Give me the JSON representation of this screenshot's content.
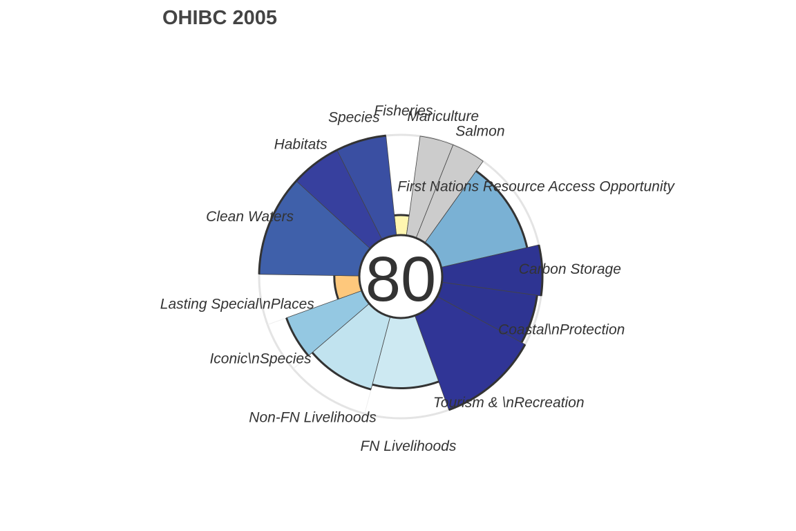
{
  "chart_data": {
    "type": "polar-bar",
    "title": "OHIBC 2005",
    "center_score": "80",
    "rmax": 100,
    "grid": true,
    "segments": [
      {
        "label": "Fisheries",
        "value": 20,
        "weight": 0.5,
        "color": "#fff6b0",
        "na": false
      },
      {
        "label": "Mariculture",
        "value": 100,
        "weight": 0.5,
        "color": "#cccccc",
        "na": true
      },
      {
        "label": "Salmon",
        "value": 100,
        "weight": 0.5,
        "color": "#cccccc",
        "na": true
      },
      {
        "label": "First Nations Resource Access Opportunity",
        "value": 88,
        "weight": 1.5,
        "color": "#7ab1d4",
        "na": false
      },
      {
        "label": "Carbon Storage",
        "value": 100,
        "weight": 0.75,
        "color": "#2e3492",
        "na": false
      },
      {
        "label": "Coastal\\nProtection",
        "value": 96,
        "weight": 0.75,
        "color": "#2e3492",
        "na": false
      },
      {
        "label": "Tourism & \\nRecreation",
        "value": 100,
        "weight": 1.5,
        "color": "#303596",
        "na": false
      },
      {
        "label": "FN Livelihoods",
        "value": 70,
        "weight": 1.25,
        "color": "#cde9f2",
        "na": false
      },
      {
        "label": "Non-FN Livelihoods",
        "value": 75,
        "weight": 1.25,
        "color": "#c1e3ef",
        "na": false
      },
      {
        "label": "Iconic\\nSpecies",
        "value": 80,
        "weight": 0.75,
        "color": "#94c8e2",
        "na": false
      },
      {
        "label": "Lasting Special\\nPlaces",
        "value": 25,
        "weight": 0.75,
        "color": "#fec87c",
        "na": false
      },
      {
        "label": "Clean Waters",
        "value": 100,
        "weight": 1.5,
        "color": "#3f60aa",
        "na": false
      },
      {
        "label": "Habitats",
        "value": 100,
        "weight": 0.75,
        "color": "#37409e",
        "na": false
      },
      {
        "label": "Species",
        "value": 100,
        "weight": 0.75,
        "color": "#3a4fa2",
        "na": false
      }
    ]
  }
}
